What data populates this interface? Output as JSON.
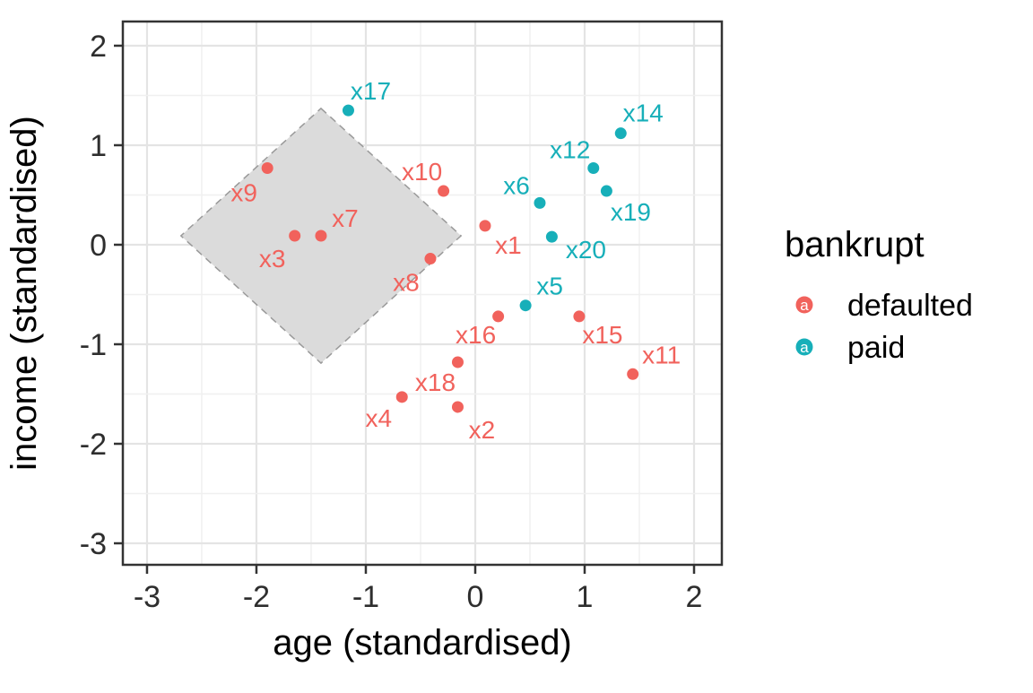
{
  "chart_data": {
    "type": "scatter",
    "title": "",
    "xlabel": "age (standardised)",
    "ylabel": "income (standardised)",
    "xlim": [
      -3.221,
      2.254
    ],
    "ylim": [
      -3.216,
      2.243
    ],
    "xticks": [
      -3,
      -2,
      -1,
      0,
      1,
      2
    ],
    "yticks": [
      2,
      1,
      0,
      -1,
      -2,
      -3
    ],
    "minor_grid_step": 0.5,
    "grid": "major and minor gridlines, light gray on white panel",
    "legend": {
      "title": "bankrupt",
      "position": "right",
      "key_glyph": "colored point with white letter a",
      "entries": [
        {
          "label": "defaulted",
          "color": "#F1625C"
        },
        {
          "label": "paid",
          "color": "#17AFB9"
        }
      ]
    },
    "series": [
      {
        "name": "defaulted",
        "color": "#F1625C",
        "points": [
          {
            "label": "x1",
            "x": 0.09,
            "y": 0.19,
            "ldx": 26,
            "ldy": 22
          },
          {
            "label": "x2",
            "x": -0.16,
            "y": -1.63,
            "ldx": 27,
            "ldy": 26
          },
          {
            "label": "x3",
            "x": -1.65,
            "y": 0.09,
            "ldx": -25,
            "ldy": 26
          },
          {
            "label": "x4",
            "x": -0.67,
            "y": -1.53,
            "ldx": -26,
            "ldy": 24
          },
          {
            "label": "x7",
            "x": -1.41,
            "y": 0.09,
            "ldx": 27,
            "ldy": -19
          },
          {
            "label": "x8",
            "x": -0.41,
            "y": -0.14,
            "ldx": -27,
            "ldy": 27
          },
          {
            "label": "x9",
            "x": -1.9,
            "y": 0.77,
            "ldx": -26,
            "ldy": 28
          },
          {
            "label": "x10",
            "x": -0.29,
            "y": 0.54,
            "ldx": -24,
            "ldy": -21
          },
          {
            "label": "x11",
            "x": 1.44,
            "y": -1.3,
            "ldx": 32,
            "ldy": -21
          },
          {
            "label": "x15",
            "x": 0.95,
            "y": -0.72,
            "ldx": 26,
            "ldy": 21
          },
          {
            "label": "x16",
            "x": 0.21,
            "y": -0.72,
            "ldx": -25,
            "ldy": 21
          },
          {
            "label": "x18",
            "x": -0.16,
            "y": -1.18,
            "ldx": -25,
            "ldy": 23
          }
        ]
      },
      {
        "name": "paid",
        "color": "#17AFB9",
        "points": [
          {
            "label": "x5",
            "x": 0.46,
            "y": -0.61,
            "ldx": 27,
            "ldy": -21
          },
          {
            "label": "x6",
            "x": 0.59,
            "y": 0.42,
            "ldx": -26,
            "ldy": -19
          },
          {
            "label": "x12",
            "x": 1.08,
            "y": 0.77,
            "ldx": -26,
            "ldy": -20
          },
          {
            "label": "x14",
            "x": 1.33,
            "y": 1.12,
            "ldx": 25,
            "ldy": -22
          },
          {
            "label": "x17",
            "x": -1.16,
            "y": 1.35,
            "ldx": 25,
            "ldy": -21
          },
          {
            "label": "x19",
            "x": 1.2,
            "y": 0.54,
            "ldx": 27,
            "ldy": 24
          },
          {
            "label": "x20",
            "x": 0.7,
            "y": 0.08,
            "ldx": 38,
            "ldy": 15
          }
        ]
      }
    ],
    "highlight_region": {
      "shape": "diamond",
      "center_x": -1.41,
      "center_y": 0.09,
      "radius": 1.28,
      "fill": "#DBDBDB",
      "stroke": "#999999"
    },
    "colors": {
      "background": "#FFFFFF",
      "panel_border": "#333333",
      "grid_major": "#E4E4E4",
      "grid_minor": "#F0F0F0",
      "tick": "#333333",
      "tick_label": "#2E2E2E"
    }
  }
}
